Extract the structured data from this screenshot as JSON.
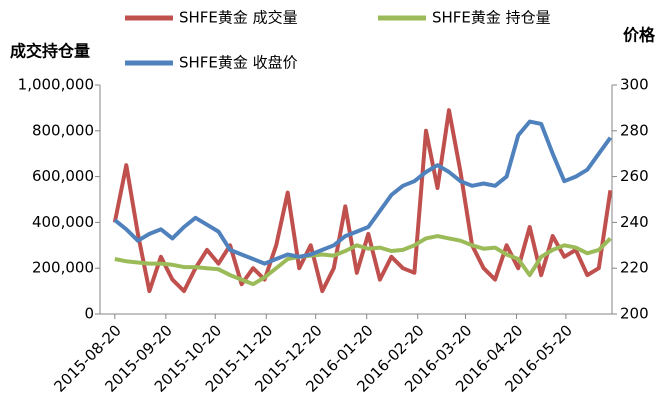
{
  "chart_data": {
    "type": "line",
    "y_label": "成交持仓量",
    "y2_label": "价格",
    "x": [
      "2015-08-20",
      "2015-08-27",
      "2015-09-03",
      "2015-09-10",
      "2015-09-17",
      "2015-09-24",
      "2015-10-01",
      "2015-10-08",
      "2015-10-15",
      "2015-10-22",
      "2015-10-29",
      "2015-11-05",
      "2015-11-12",
      "2015-11-19",
      "2015-11-26",
      "2015-12-03",
      "2015-12-10",
      "2015-12-17",
      "2015-12-24",
      "2015-12-31",
      "2016-01-07",
      "2016-01-14",
      "2016-01-21",
      "2016-01-28",
      "2016-02-04",
      "2016-02-11",
      "2016-02-18",
      "2016-02-25",
      "2016-03-03",
      "2016-03-10",
      "2016-03-17",
      "2016-03-24",
      "2016-03-31",
      "2016-04-07",
      "2016-04-14",
      "2016-04-21",
      "2016-04-28",
      "2016-05-05",
      "2016-05-12",
      "2016-05-19",
      "2016-05-26",
      "2016-06-02",
      "2016-06-09",
      "2016-06-16"
    ],
    "series": [
      {
        "name": "SHFE黄金 成交量",
        "color": "#c0504d",
        "values": [
          400000,
          650000,
          350000,
          100000,
          250000,
          150000,
          100000,
          200000,
          280000,
          220000,
          300000,
          130000,
          200000,
          150000,
          300000,
          530000,
          200000,
          300000,
          100000,
          200000,
          470000,
          180000,
          350000,
          150000,
          250000,
          200000,
          180000,
          800000,
          550000,
          890000,
          620000,
          300000,
          200000,
          150000,
          300000,
          200000,
          380000,
          170000,
          340000,
          250000,
          280000,
          170000,
          200000,
          540000
        ]
      },
      {
        "name": "SHFE黄金 持仓量",
        "color": "#9bbb59",
        "values": [
          240000,
          230000,
          225000,
          220000,
          220000,
          215000,
          205000,
          205000,
          200000,
          195000,
          170000,
          150000,
          130000,
          160000,
          200000,
          240000,
          250000,
          255000,
          260000,
          255000,
          275000,
          300000,
          285000,
          290000,
          275000,
          280000,
          300000,
          330000,
          340000,
          330000,
          320000,
          300000,
          285000,
          290000,
          260000,
          240000,
          170000,
          250000,
          280000,
          300000,
          290000,
          265000,
          280000,
          330000
        ]
      },
      {
        "name": "SHFE黄金 收盘价",
        "color": "#4f81bd",
        "axis": "y2",
        "values": [
          241,
          237,
          232,
          235,
          237,
          233,
          238,
          242,
          239,
          236,
          228,
          226,
          224,
          222,
          224,
          226,
          225,
          226,
          228,
          230,
          234,
          236,
          238,
          245,
          252,
          256,
          258,
          262,
          265,
          262,
          258,
          256,
          257,
          256,
          260,
          278,
          284,
          283,
          270,
          258,
          260,
          263,
          270,
          277
        ]
      }
    ],
    "xlim": [
      "2015-08-11",
      "2016-06-17"
    ],
    "xticks": [
      "2015-08-20",
      "2015-09-20",
      "2015-10-20",
      "2015-11-20",
      "2015-12-20",
      "2016-01-20",
      "2016-02-20",
      "2016-03-20",
      "2016-04-20",
      "2016-05-20"
    ],
    "ylim": [
      0,
      1000000
    ],
    "yticks": [
      0,
      {
        "value": 200000,
        "label": "200,000"
      },
      {
        "value": 400000,
        "label": "400,000"
      },
      {
        "value": 600000,
        "label": "600,000"
      },
      {
        "value": 800000,
        "label": "800,000"
      },
      {
        "value": 1000000,
        "label": "1,000,000"
      }
    ],
    "y2lim": [
      200,
      300
    ],
    "y2ticks": [
      200,
      220,
      240,
      260,
      280,
      300
    ],
    "legend": "top"
  }
}
